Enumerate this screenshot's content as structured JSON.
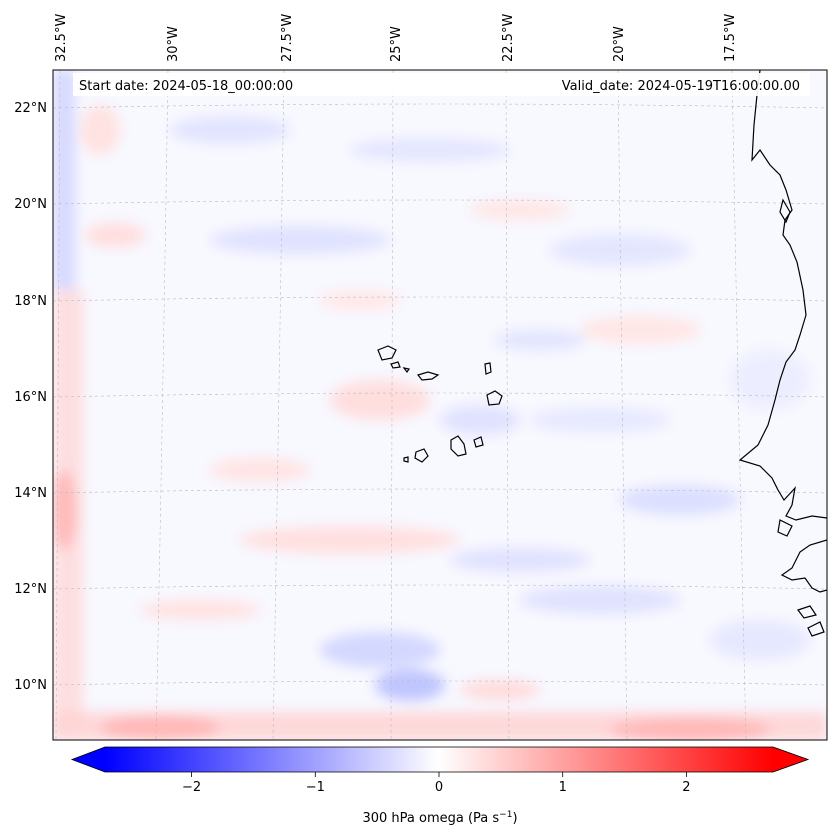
{
  "map": {
    "start_date": "Start date: 2024-05-18_00:00:00",
    "valid_date": "Valid_date: 2024-05-19T16:00:00.00",
    "lon_labels": [
      "32.5°W",
      "30°W",
      "27.5°W",
      "25°W",
      "22.5°W",
      "20°W",
      "17.5°W"
    ],
    "lat_labels": [
      "22°N",
      "20°N",
      "18°N",
      "16°N",
      "14°N",
      "12°N",
      "10°N"
    ]
  },
  "colorbar": {
    "label": "300 hPa omega (Pa s",
    "label_superscript": "−1",
    "label_close": ")",
    "ticks": [
      "−2",
      "−1",
      "0",
      "1",
      "2"
    ],
    "tick_values": [
      -2,
      -1,
      0,
      1,
      2
    ],
    "vmin": -2.7,
    "vmax": 2.7,
    "colors": {
      "negative": "#0000ff",
      "zero": "#ffffff",
      "positive": "#ff0000"
    }
  }
}
